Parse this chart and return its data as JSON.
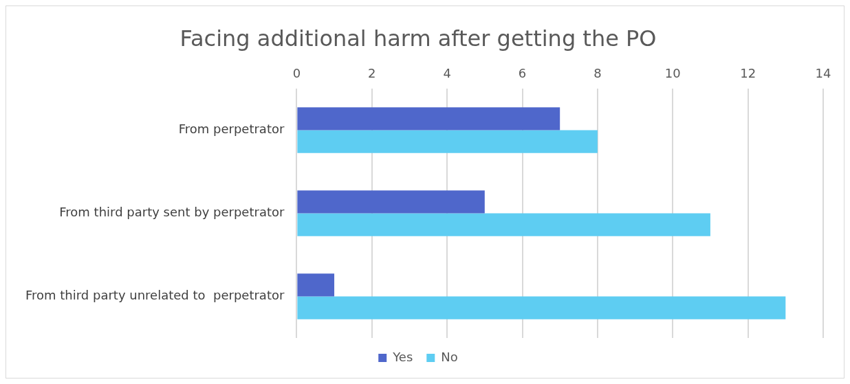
{
  "chart_data": {
    "type": "bar",
    "orientation": "horizontal",
    "title": "Facing additional harm after getting the PO",
    "categories": [
      "From perpetrator",
      "From third party sent by perpetrator",
      "From third party unrelated to  perpetrator"
    ],
    "series": [
      {
        "name": "Yes",
        "color": "#4f67cb",
        "values": [
          7,
          5,
          1
        ]
      },
      {
        "name": "No",
        "color": "#5ecdf2",
        "values": [
          8,
          11,
          13
        ]
      }
    ],
    "xlim": [
      0,
      14
    ],
    "xticks": [
      0,
      2,
      4,
      6,
      8,
      10,
      12,
      14
    ],
    "grid": "x",
    "legend": "bottom"
  }
}
